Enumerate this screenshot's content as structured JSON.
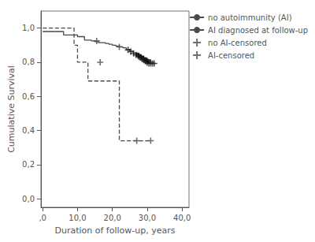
{
  "chart_data": {
    "type": "line",
    "xlabel": "Duration of follow-up, years",
    "ylabel": "Cumulative Survival",
    "xlim": [
      -0.5,
      42
    ],
    "ylim": [
      -0.05,
      1.1
    ],
    "xticks": [
      {
        "value": 0,
        "label": ",0"
      },
      {
        "value": 10,
        "label": "10,0"
      },
      {
        "value": 20,
        "label": "20,0"
      },
      {
        "value": 30,
        "label": "30,0"
      },
      {
        "value": 40,
        "label": "40,0"
      }
    ],
    "yticks": [
      {
        "value": 0.0,
        "label": "0,0"
      },
      {
        "value": 0.2,
        "label": "0,2"
      },
      {
        "value": 0.4,
        "label": "0,4"
      },
      {
        "value": 0.6,
        "label": "0,6"
      },
      {
        "value": 0.8,
        "label": "0,8"
      },
      {
        "value": 1.0,
        "label": "1,0"
      }
    ],
    "grid": false,
    "legend": "right",
    "series": [
      {
        "name": "no autoimmunity (AI)",
        "type": "step",
        "line_style": "solid",
        "color": "#4a4a4a",
        "x": [
          0,
          6,
          10,
          12,
          14,
          15,
          16,
          18,
          19,
          20,
          21,
          22,
          23,
          24,
          25,
          26,
          27,
          28,
          29,
          30,
          31,
          32
        ],
        "values": [
          0.98,
          0.96,
          0.95,
          0.93,
          0.925,
          0.92,
          0.915,
          0.91,
          0.905,
          0.9,
          0.895,
          0.89,
          0.885,
          0.875,
          0.865,
          0.855,
          0.845,
          0.835,
          0.825,
          0.815,
          0.8,
          0.8
        ]
      },
      {
        "name": "AI diagnosed at follow-up",
        "type": "step",
        "line_style": "dashed",
        "color": "#4a4a4a",
        "x": [
          0,
          9,
          10,
          13,
          22,
          31
        ],
        "values": [
          1.0,
          0.9,
          0.8,
          0.69,
          0.34,
          0.34
        ]
      },
      {
        "name": "no AI-censored",
        "type": "scatter",
        "marker": "plus",
        "color": "#4a4a4a",
        "x": [
          15.5,
          22.0
        ],
        "values": [
          0.925,
          0.89
        ]
      },
      {
        "name": "AI-censored",
        "type": "scatter",
        "marker": "plus",
        "color": "#4a4a4a",
        "x": [
          16.5,
          27.0,
          31.0
        ],
        "values": [
          0.8,
          0.34,
          0.34
        ]
      },
      {
        "type": "scatter",
        "marker": "plus",
        "color": "#222222",
        "x": [
          24.5,
          25.3,
          26.1,
          26.8,
          27.5,
          28.0,
          28.5,
          29.0,
          29.5,
          30.0,
          30.5,
          31.0,
          31.5,
          32.0
        ],
        "values": [
          0.872,
          0.862,
          0.852,
          0.843,
          0.835,
          0.828,
          0.82,
          0.813,
          0.805,
          0.798,
          0.793,
          0.793,
          0.793,
          0.793
        ]
      },
      {
        "type": "scatter",
        "marker": "square",
        "color": "#111111",
        "x": [
          27.2,
          27.9,
          28.6,
          29.3,
          29.8,
          30.3
        ],
        "values": [
          0.845,
          0.836,
          0.827,
          0.818,
          0.81,
          0.802
        ]
      }
    ]
  }
}
